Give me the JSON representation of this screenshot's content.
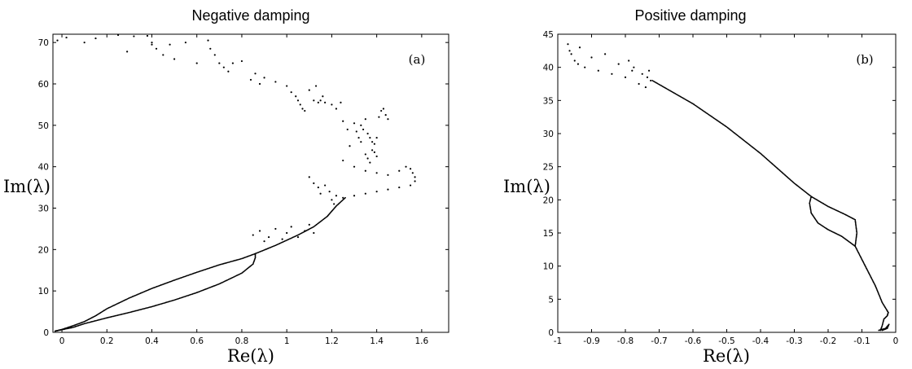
{
  "chart_data": [
    {
      "type": "scatter",
      "title": "Negative damping",
      "panel_label": "(a)",
      "xlabel": "Re(λ)",
      "ylabel": "Im(λ)",
      "xlim": [
        -0.04,
        1.72
      ],
      "ylim": [
        0,
        72
      ],
      "xticks": [
        0,
        0.2,
        0.4,
        0.6,
        0.8,
        1,
        1.2,
        1.4,
        1.6
      ],
      "xtick_labels": [
        "0",
        "0.2",
        "0.4",
        "0.6",
        "0.8",
        "1",
        "1.2",
        "1.4",
        "1.6"
      ],
      "yticks": [
        0,
        10,
        20,
        30,
        40,
        50,
        60,
        70
      ],
      "ytick_labels": [
        "0",
        "10",
        "20",
        "30",
        "40",
        "50",
        "60",
        "70"
      ],
      "grid": false,
      "marker_color": "#000000",
      "curves": [
        {
          "name": "",
          "points": [
            [
              -0.03,
              0.3
            ],
            [
              0.0,
              0.7
            ],
            [
              0.05,
              1.6
            ],
            [
              0.1,
              2.6
            ],
            [
              0.15,
              4.0
            ],
            [
              0.2,
              5.7
            ],
            [
              0.3,
              8.3
            ],
            [
              0.4,
              10.6
            ],
            [
              0.5,
              12.6
            ],
            [
              0.6,
              14.5
            ],
            [
              0.7,
              16.3
            ],
            [
              0.8,
              17.8
            ],
            [
              0.86,
              19.0
            ]
          ]
        },
        {
          "name": "",
          "points": [
            [
              -0.03,
              0.3
            ],
            [
              0.05,
              1.2
            ],
            [
              0.1,
              2.1
            ],
            [
              0.2,
              3.5
            ],
            [
              0.3,
              4.8
            ],
            [
              0.4,
              6.2
            ],
            [
              0.5,
              7.8
            ],
            [
              0.6,
              9.6
            ],
            [
              0.7,
              11.7
            ],
            [
              0.8,
              14.3
            ],
            [
              0.85,
              16.5
            ],
            [
              0.86,
              18.0
            ],
            [
              0.86,
              19.0
            ]
          ]
        },
        {
          "name": "",
          "points": [
            [
              0.86,
              19.0
            ],
            [
              0.95,
              21.0
            ],
            [
              1.05,
              23.5
            ],
            [
              1.12,
              25.5
            ],
            [
              1.18,
              28.0
            ],
            [
              1.22,
              30.5
            ],
            [
              1.26,
              32.5
            ]
          ]
        }
      ],
      "scatter_points": [
        [
          -0.02,
          70.5
        ],
        [
          0.02,
          71.2
        ],
        [
          0.1,
          70.0
        ],
        [
          0.15,
          71.0
        ],
        [
          0.25,
          71.8
        ],
        [
          0.29,
          67.8
        ],
        [
          0.32,
          71.5
        ],
        [
          0.38,
          71.6
        ],
        [
          0.4,
          70.0
        ],
        [
          0.4,
          69.5
        ],
        [
          0.42,
          68.5
        ],
        [
          0.45,
          67.0
        ],
        [
          0.48,
          69.5
        ],
        [
          0.5,
          66.0
        ],
        [
          0.55,
          70.0
        ],
        [
          0.6,
          65.0
        ],
        [
          0.65,
          70.5
        ],
        [
          0.66,
          68.5
        ],
        [
          0.68,
          67.0
        ],
        [
          0.7,
          65.0
        ],
        [
          0.72,
          64.0
        ],
        [
          0.74,
          63.0
        ],
        [
          0.76,
          65.0
        ],
        [
          0.8,
          65.5
        ],
        [
          0.84,
          61.0
        ],
        [
          0.86,
          62.5
        ],
        [
          0.88,
          60.0
        ],
        [
          0.9,
          61.5
        ],
        [
          0.95,
          60.5
        ],
        [
          1.0,
          59.5
        ],
        [
          1.02,
          58.0
        ],
        [
          1.04,
          57.0
        ],
        [
          1.05,
          56.0
        ],
        [
          1.06,
          55.0
        ],
        [
          1.07,
          54.0
        ],
        [
          1.08,
          53.5
        ],
        [
          1.1,
          58.5
        ],
        [
          1.12,
          56.0
        ],
        [
          1.13,
          59.5
        ],
        [
          1.14,
          55.5
        ],
        [
          1.15,
          56.0
        ],
        [
          1.16,
          57.0
        ],
        [
          1.17,
          55.5
        ],
        [
          1.2,
          55.0
        ],
        [
          1.22,
          54.0
        ],
        [
          1.24,
          55.5
        ],
        [
          1.25,
          51.0
        ],
        [
          1.27,
          49.0
        ],
        [
          1.28,
          45.0
        ],
        [
          1.3,
          50.5
        ],
        [
          1.31,
          48.5
        ],
        [
          1.32,
          47.0
        ],
        [
          1.33,
          50.0
        ],
        [
          1.33,
          46.0
        ],
        [
          1.34,
          49.0
        ],
        [
          1.35,
          51.5
        ],
        [
          1.35,
          43.0
        ],
        [
          1.36,
          48.0
        ],
        [
          1.36,
          42.0
        ],
        [
          1.37,
          47.0
        ],
        [
          1.37,
          41.0
        ],
        [
          1.38,
          46.0
        ],
        [
          1.38,
          44.0
        ],
        [
          1.39,
          45.5
        ],
        [
          1.39,
          43.5
        ],
        [
          1.4,
          47.0
        ],
        [
          1.4,
          42.5
        ],
        [
          1.41,
          52.0
        ],
        [
          1.42,
          53.5
        ],
        [
          1.43,
          54.0
        ],
        [
          1.44,
          52.5
        ],
        [
          1.45,
          51.5
        ],
        [
          1.25,
          41.5
        ],
        [
          1.3,
          40.0
        ],
        [
          1.35,
          39.0
        ],
        [
          1.4,
          38.5
        ],
        [
          1.45,
          38.0
        ],
        [
          1.5,
          39.0
        ],
        [
          1.53,
          40.0
        ],
        [
          1.55,
          39.5
        ],
        [
          1.56,
          38.5
        ],
        [
          1.57,
          37.5
        ],
        [
          1.57,
          36.5
        ],
        [
          1.55,
          35.5
        ],
        [
          1.5,
          35.0
        ],
        [
          1.45,
          34.5
        ],
        [
          1.4,
          34.0
        ],
        [
          1.35,
          33.5
        ],
        [
          1.3,
          33.0
        ],
        [
          1.25,
          32.5
        ],
        [
          1.1,
          37.5
        ],
        [
          1.12,
          36.0
        ],
        [
          1.14,
          35.0
        ],
        [
          1.15,
          33.5
        ],
        [
          1.17,
          35.5
        ],
        [
          1.19,
          34.0
        ],
        [
          1.2,
          32.0
        ],
        [
          1.21,
          31.0
        ],
        [
          1.22,
          33.0
        ],
        [
          0.85,
          23.5
        ],
        [
          0.88,
          24.5
        ],
        [
          0.9,
          22.0
        ],
        [
          0.95,
          25.0
        ],
        [
          1.0,
          24.0
        ],
        [
          1.02,
          25.5
        ],
        [
          1.05,
          23.0
        ],
        [
          1.08,
          24.5
        ],
        [
          1.1,
          26.0
        ],
        [
          1.12,
          24.0
        ],
        [
          0.92,
          23.0
        ],
        [
          0.98,
          22.5
        ]
      ]
    },
    {
      "type": "scatter",
      "title": "Positive damping",
      "panel_label": "(b)",
      "xlabel": "Re(λ)",
      "ylabel": "Im(λ)",
      "xlim": [
        -1,
        0
      ],
      "ylim": [
        0,
        45
      ],
      "xticks": [
        -1,
        -0.9,
        -0.8,
        -0.7,
        -0.6,
        -0.5,
        -0.4,
        -0.3,
        -0.2,
        -0.1,
        0
      ],
      "xtick_labels": [
        "-1",
        "-0.9",
        "-0.8",
        "-0.7",
        "-0.6",
        "-0.5",
        "-0.4",
        "-0.3",
        "-0.2",
        "-0.1",
        "0"
      ],
      "yticks": [
        0,
        5,
        10,
        15,
        20,
        25,
        30,
        35,
        40,
        45
      ],
      "ytick_labels": [
        "0",
        "5",
        "10",
        "15",
        "20",
        "25",
        "30",
        "35",
        "40",
        "45"
      ],
      "grid": false,
      "marker_color": "#000000",
      "curves": [
        {
          "name": "",
          "points": [
            [
              -0.72,
              38.0
            ],
            [
              -0.6,
              34.5
            ],
            [
              -0.5,
              31.0
            ],
            [
              -0.4,
              27.0
            ],
            [
              -0.3,
              22.5
            ],
            [
              -0.25,
              20.5
            ],
            [
              -0.2,
              19.0
            ],
            [
              -0.15,
              17.8
            ],
            [
              -0.12,
              17.0
            ],
            [
              -0.115,
              15.0
            ],
            [
              -0.12,
              13.0
            ]
          ]
        },
        {
          "name": "",
          "points": [
            [
              -0.25,
              20.5
            ],
            [
              -0.255,
              19.5
            ],
            [
              -0.25,
              18.0
            ],
            [
              -0.23,
              16.5
            ],
            [
              -0.2,
              15.5
            ],
            [
              -0.16,
              14.5
            ],
            [
              -0.12,
              13.0
            ]
          ]
        },
        {
          "name": "",
          "points": [
            [
              -0.12,
              13.0
            ],
            [
              -0.09,
              10.0
            ],
            [
              -0.06,
              7.0
            ],
            [
              -0.04,
              4.5
            ],
            [
              -0.028,
              3.5
            ],
            [
              -0.022,
              3.0
            ],
            [
              -0.025,
              2.5
            ],
            [
              -0.035,
              2.0
            ],
            [
              -0.04,
              1.0
            ],
            [
              -0.045,
              0.3
            ]
          ]
        },
        {
          "name": "",
          "points": [
            [
              -0.05,
              0.3
            ],
            [
              -0.03,
              0.6
            ],
            [
              -0.02,
              1.2
            ],
            [
              -0.025,
              0.6
            ],
            [
              -0.04,
              0.3
            ]
          ]
        }
      ],
      "scatter_points": [
        [
          -0.97,
          43.5
        ],
        [
          -0.965,
          42.5
        ],
        [
          -0.96,
          42.0
        ],
        [
          -0.95,
          41.0
        ],
        [
          -0.94,
          40.5
        ],
        [
          -0.935,
          43.0
        ],
        [
          -0.92,
          40.0
        ],
        [
          -0.9,
          41.5
        ],
        [
          -0.88,
          39.5
        ],
        [
          -0.86,
          42.0
        ],
        [
          -0.84,
          39.0
        ],
        [
          -0.82,
          40.5
        ],
        [
          -0.8,
          38.5
        ],
        [
          -0.78,
          39.5
        ],
        [
          -0.79,
          41.0
        ],
        [
          -0.775,
          40.0
        ],
        [
          -0.76,
          37.5
        ],
        [
          -0.75,
          39.0
        ],
        [
          -0.74,
          37.0
        ],
        [
          -0.735,
          38.5
        ],
        [
          -0.73,
          39.5
        ],
        [
          -0.725,
          38.0
        ]
      ]
    }
  ]
}
